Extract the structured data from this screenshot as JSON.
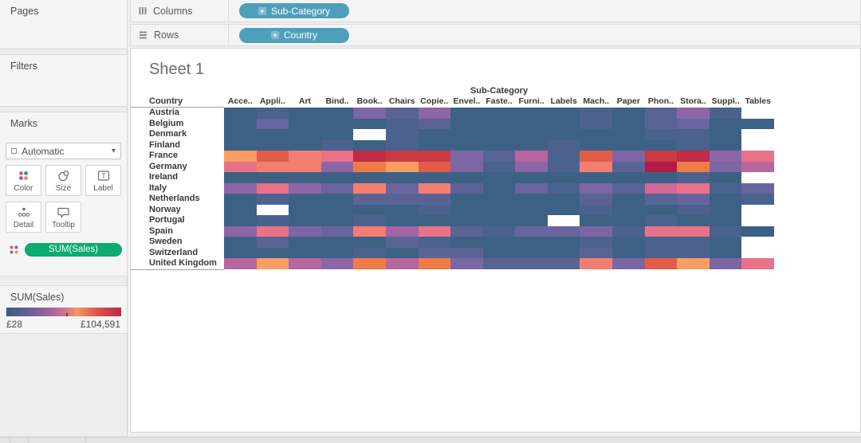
{
  "sidebar": {
    "pages_label": "Pages",
    "filters_label": "Filters",
    "marks_label": "Marks",
    "mark_type_value": "Automatic",
    "buttons": {
      "color": "Color",
      "size": "Size",
      "label": "Label",
      "detail": "Detail",
      "tooltip": "Tooltip"
    },
    "encoding_pill": "SUM(Sales)"
  },
  "shelves": {
    "columns_label": "Columns",
    "columns_pill": "Sub-Category",
    "rows_label": "Rows",
    "rows_pill": "Country"
  },
  "chart_data": {
    "type": "heatmap",
    "title": "Sheet 1",
    "column_field": "Sub-Category",
    "row_field": "Country",
    "color_encoding": "SUM(Sales)",
    "columns": [
      "Acce..",
      "Appli..",
      "Art",
      "Bind..",
      "Book..",
      "Chairs",
      "Copie..",
      "Envel..",
      "Faste..",
      "Furni..",
      "Labels",
      "Mach..",
      "Paper",
      "Phon..",
      "Stora..",
      "Suppl..",
      "Tables"
    ],
    "rows": [
      "Austria",
      "Belgium",
      "Denmark",
      "Finland",
      "France",
      "Germany",
      "Ireland",
      "Italy",
      "Netherlands",
      "Norway",
      "Portugal",
      "Spain",
      "Sweden",
      "Switzerland",
      "United Kingdom"
    ],
    "palette": {
      "wh": "#ffffff",
      "d0": "#3d6185",
      "d1": "#4a628d",
      "d2": "#596495",
      "d3": "#68659e",
      "p1": "#7c66a4",
      "p2": "#8e66a7",
      "p3": "#a264a3",
      "p4": "#b7669f",
      "k1": "#d16997",
      "k2": "#e87289",
      "sl": "#f47e72",
      "o1": "#f99d62",
      "o2": "#ee7c47",
      "ro": "#e25d49",
      "r1": "#ca3a43",
      "r2": "#bf2c45",
      "cr": "#b11b46"
    },
    "cells": [
      [
        "d0",
        "d1",
        "d0",
        "d0",
        "p1",
        "d2",
        "p2",
        "d0",
        "d0",
        "d0",
        "d0",
        "d1",
        "d0",
        "d2",
        "p2",
        "d1",
        "wh"
      ],
      [
        "d0",
        "d3",
        "d0",
        "d0",
        "d0",
        "d1",
        "d2",
        "d0",
        "d0",
        "d0",
        "d0",
        "d1",
        "d0",
        "d2",
        "d3",
        "d0",
        "d0"
      ],
      [
        "d0",
        "d0",
        "d0",
        "d0",
        "wh",
        "d1",
        "d0",
        "d0",
        "d0",
        "d0",
        "d0",
        "d0",
        "d0",
        "d1",
        "d1",
        "d0",
        "wh"
      ],
      [
        "d0",
        "d0",
        "d0",
        "d1",
        "d0",
        "d1",
        "d0",
        "d0",
        "d0",
        "d0",
        "d1",
        "d0",
        "d0",
        "d0",
        "d1",
        "d0",
        "wh"
      ],
      [
        "o1",
        "ro",
        "sl",
        "k2",
        "r2",
        "r1",
        "r1",
        "p1",
        "d2",
        "p4",
        "d1",
        "ro",
        "p1",
        "r1",
        "r2",
        "p2",
        "k2"
      ],
      [
        "k2",
        "sl",
        "sl",
        "p2",
        "o2",
        "o1",
        "ro",
        "p1",
        "d1",
        "p2",
        "d1",
        "sl",
        "d2",
        "cr",
        "o2",
        "p1",
        "p4"
      ],
      [
        "d0",
        "d0",
        "d0",
        "d0",
        "d0",
        "d0",
        "d0",
        "d0",
        "d0",
        "d0",
        "d0",
        "d0",
        "d0",
        "d0",
        "d1",
        "d0",
        "wh"
      ],
      [
        "p2",
        "k2",
        "p2",
        "d3",
        "sl",
        "d3",
        "sl",
        "d2",
        "d0",
        "d3",
        "d1",
        "p1",
        "d2",
        "k1",
        "k2",
        "d1",
        "d3"
      ],
      [
        "d0",
        "d1",
        "d0",
        "d0",
        "d2",
        "d2",
        "d2",
        "d0",
        "d0",
        "d0",
        "d0",
        "d2",
        "d0",
        "d2",
        "d3",
        "d0",
        "d1"
      ],
      [
        "d0",
        "wh",
        "d0",
        "d0",
        "d0",
        "d0",
        "d1",
        "d0",
        "d0",
        "d0",
        "d0",
        "d1",
        "d0",
        "d0",
        "d1",
        "d0",
        "wh"
      ],
      [
        "d0",
        "d1",
        "d0",
        "d0",
        "d1",
        "d0",
        "d0",
        "d0",
        "d0",
        "d0",
        "wh",
        "d0",
        "d0",
        "d1",
        "d0",
        "d0",
        "wh"
      ],
      [
        "p2",
        "k2",
        "p1",
        "d3",
        "sl",
        "p3",
        "k2",
        "d2",
        "d1",
        "d3",
        "d3",
        "p1",
        "d1",
        "k2",
        "k2",
        "d1",
        "d0"
      ],
      [
        "d0",
        "d2",
        "d0",
        "d0",
        "d0",
        "d2",
        "d1",
        "d0",
        "d0",
        "d0",
        "d0",
        "d1",
        "d0",
        "d1",
        "d1",
        "d0",
        "wh"
      ],
      [
        "d0",
        "d0",
        "d0",
        "d0",
        "d1",
        "d0",
        "d2",
        "d2",
        "d0",
        "d0",
        "d0",
        "d2",
        "d0",
        "d1",
        "d1",
        "d0",
        "wh"
      ],
      [
        "p4",
        "o1",
        "p4",
        "p2",
        "o2",
        "p4",
        "o2",
        "p1",
        "d2",
        "d2",
        "d2",
        "sl",
        "p1",
        "ro",
        "o1",
        "p1",
        "k2"
      ]
    ],
    "legend": {
      "title": "SUM(Sales)",
      "min_label": "£28",
      "max_label": "£104,591",
      "gradient_stops": [
        "#3a5d80 0%",
        "#6e5f9d 22%",
        "#a463a0 38%",
        "#d06f90 50%",
        "#f0975f 62%",
        "#de564a 78%",
        "#ba2a42 100%"
      ],
      "tick_pct": 52
    }
  }
}
